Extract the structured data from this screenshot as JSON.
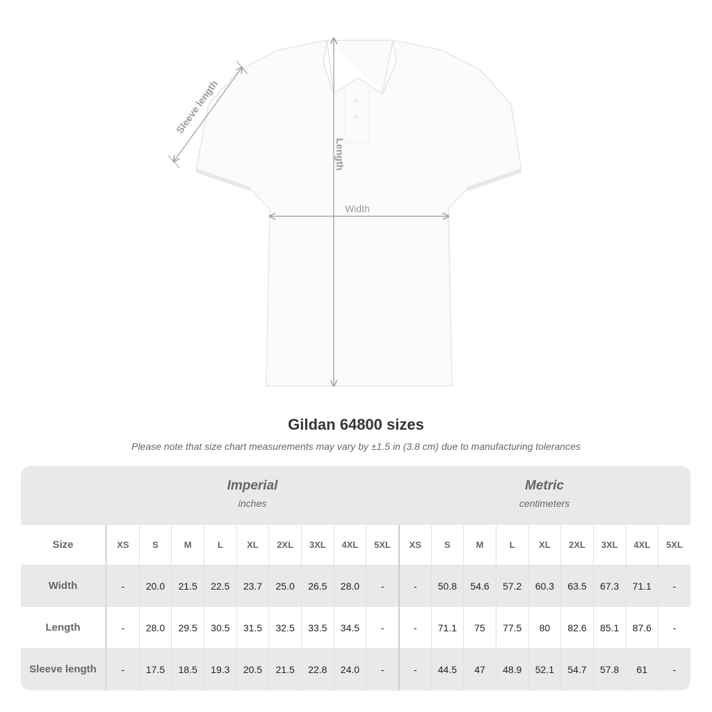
{
  "diagram": {
    "labels": {
      "sleeve": "Sleeve length",
      "length": "Length",
      "width": "Width"
    }
  },
  "title": "Gildan 64800 sizes",
  "note": "Please note that size chart measurements may vary by ±1.5 in (3.8 cm) due to manufacturing tolerances",
  "table": {
    "imperial": {
      "heading": "Imperial",
      "unit": "inches"
    },
    "metric": {
      "heading": "Metric",
      "unit": "centimeters"
    },
    "size_label": "Size",
    "sizes": [
      "XS",
      "S",
      "M",
      "L",
      "XL",
      "2XL",
      "3XL",
      "4XL",
      "5XL"
    ],
    "rows": [
      {
        "label": "Width",
        "imperial": [
          "-",
          "20.0",
          "21.5",
          "22.5",
          "23.7",
          "25.0",
          "26.5",
          "28.0",
          "-"
        ],
        "metric": [
          "-",
          "50.8",
          "54.6",
          "57.2",
          "60.3",
          "63.5",
          "67.3",
          "71.1",
          "-"
        ]
      },
      {
        "label": "Length",
        "imperial": [
          "-",
          "28.0",
          "29.5",
          "30.5",
          "31.5",
          "32.5",
          "33.5",
          "34.5",
          "-"
        ],
        "metric": [
          "-",
          "71.1",
          "75",
          "77.5",
          "80",
          "82.6",
          "85.1",
          "87.6",
          "-"
        ]
      },
      {
        "label": "Sleeve length",
        "imperial": [
          "-",
          "17.5",
          "18.5",
          "19.3",
          "20.5",
          "21.5",
          "22.8",
          "24.0",
          "-"
        ],
        "metric": [
          "-",
          "44.5",
          "47",
          "48.9",
          "52.1",
          "54.7",
          "57.8",
          "61",
          "-"
        ]
      }
    ]
  }
}
